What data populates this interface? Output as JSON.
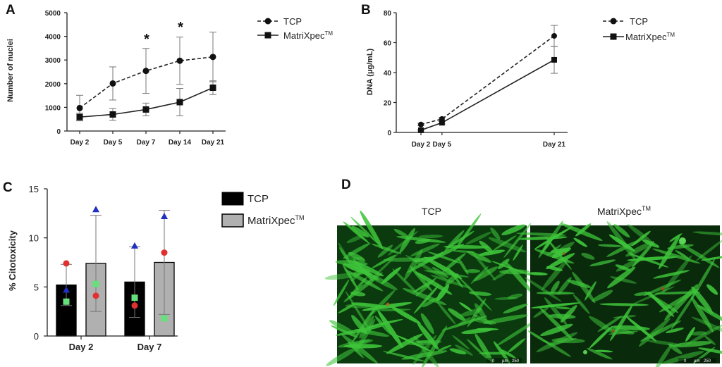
{
  "panels": {
    "A": {
      "letter": "A",
      "ylabel": "Number of nuclei",
      "y_ticks": [
        "0",
        "1000",
        "2000",
        "3000",
        "4000",
        "5000"
      ],
      "x_ticks": [
        "Day 2",
        "Day 5",
        "Day 7",
        "Day 14",
        "Day 21"
      ],
      "legend": [
        "TCP",
        "MatriXpec"
      ],
      "legend_tm": "TM",
      "stars": [
        "*",
        "*"
      ]
    },
    "B": {
      "letter": "B",
      "ylabel": "DNA (µg/mL)",
      "y_ticks": [
        "0",
        "20",
        "40",
        "60",
        "80"
      ],
      "x_ticks": [
        "Day 2",
        "Day 5",
        "Day 21"
      ],
      "legend": [
        "TCP",
        "MatriXpec"
      ],
      "legend_tm": "TM"
    },
    "C": {
      "letter": "C",
      "ylabel": "% Citotoxicity",
      "y_ticks": [
        "0",
        "5",
        "10",
        "15"
      ],
      "x_ticks": [
        "Day 2",
        "Day 7"
      ],
      "legend": [
        "TCP",
        "MatriXpec"
      ],
      "legend_tm": "TM"
    },
    "D": {
      "letter": "D",
      "image_labels": [
        "TCP",
        "MatriXpec"
      ],
      "image_tm": "TM",
      "scale_bar": [
        "0",
        "µm",
        "250"
      ]
    }
  },
  "colors": {
    "tcp_bar": "#000000",
    "matrixpec_bar": "#b0b0b0",
    "point_red": "#e03030",
    "point_blue": "#2030c0",
    "point_green": "#66e07a",
    "fluor_bg": "#0b3a0e",
    "fluor_cell": "#3ec43a"
  },
  "chart_data": [
    {
      "panel": "A",
      "type": "line",
      "title": "",
      "xlabel": "",
      "ylabel": "Number of nuclei",
      "categories": [
        "Day 2",
        "Day 5",
        "Day 7",
        "Day 14",
        "Day 21"
      ],
      "ylim": [
        0,
        5000
      ],
      "series": [
        {
          "name": "TCP",
          "values": [
            970,
            2010,
            2540,
            2970,
            3130
          ],
          "err": [
            540,
            700,
            950,
            1000,
            1050
          ],
          "style": "dashed",
          "marker": "circle"
        },
        {
          "name": "MatriXpec",
          "values": [
            590,
            700,
            910,
            1220,
            1830
          ],
          "err": [
            160,
            250,
            270,
            580,
            290
          ],
          "style": "solid",
          "marker": "square"
        }
      ],
      "significance": [
        "Day 7",
        "Day 14"
      ],
      "legend_position": "top-right"
    },
    {
      "panel": "B",
      "type": "line",
      "title": "",
      "xlabel": "",
      "ylabel": "DNA (µg/mL)",
      "x": [
        2,
        5,
        21
      ],
      "x_tick_labels": [
        "Day 2",
        "Day 5",
        "Day 21"
      ],
      "xlim": [
        2,
        21
      ],
      "ylim": [
        0,
        80
      ],
      "series": [
        {
          "name": "TCP",
          "values": [
            5.3,
            9.0,
            64.5
          ],
          "err": [
            0.8,
            1.0,
            7.0
          ],
          "style": "dashed",
          "marker": "circle"
        },
        {
          "name": "MatriXpec",
          "values": [
            1.5,
            6.5,
            48.5
          ],
          "err": [
            0.5,
            0.8,
            9.0
          ],
          "style": "solid",
          "marker": "square"
        }
      ],
      "legend_position": "top-right"
    },
    {
      "panel": "C",
      "type": "bar",
      "title": "",
      "xlabel": "",
      "ylabel": "% Citotoxicity",
      "categories": [
        "Day 2",
        "Day 7"
      ],
      "ylim": [
        0,
        15
      ],
      "series": [
        {
          "name": "TCP",
          "values": [
            5.2,
            5.5
          ],
          "err": [
            2.1,
            3.6
          ],
          "points": [
            {
              "shape": "circle",
              "color": "red",
              "values": [
                7.4,
                3.1
              ]
            },
            {
              "shape": "triangle",
              "color": "blue",
              "values": [
                4.7,
                9.2
              ]
            },
            {
              "shape": "square",
              "color": "green",
              "values": [
                3.5,
                3.9
              ]
            }
          ]
        },
        {
          "name": "MatriXpec",
          "values": [
            7.4,
            7.5
          ],
          "err": [
            4.9,
            5.3
          ],
          "points": [
            {
              "shape": "circle",
              "color": "red",
              "values": [
                4.1,
                8.5
              ]
            },
            {
              "shape": "triangle",
              "color": "blue",
              "values": [
                12.9,
                12.2
              ]
            },
            {
              "shape": "square",
              "color": "green",
              "values": [
                5.3,
                1.8
              ]
            }
          ]
        }
      ],
      "legend_position": "right"
    }
  ]
}
